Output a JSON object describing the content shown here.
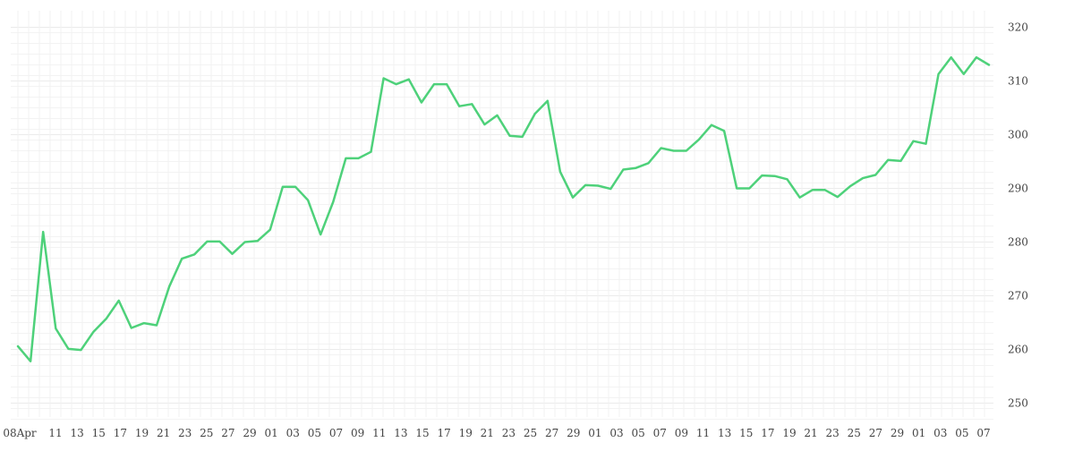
{
  "chart_data": {
    "type": "line",
    "title": "",
    "xlabel": "",
    "ylabel": "",
    "ylim": [
      245,
      322
    ],
    "y_ticks": [
      250,
      260,
      270,
      280,
      290,
      300,
      310,
      320
    ],
    "y_axis_position": "right",
    "grid": true,
    "legend": "none",
    "line_color": "#4ed17a",
    "grid_color": "#ebebeb",
    "x_tick_labels": [
      "08Apr",
      "11",
      "13",
      "15",
      "17",
      "19",
      "21",
      "23",
      "25",
      "27",
      "29",
      "01",
      "03",
      "05",
      "07",
      "09",
      "11",
      "13",
      "15",
      "17",
      "19",
      "21",
      "23",
      "25",
      "27",
      "29",
      "01",
      "03",
      "05",
      "07",
      "09",
      "11",
      "13",
      "15",
      "17",
      "19",
      "21",
      "23",
      "25",
      "27",
      "29",
      "01",
      "03",
      "05",
      "07"
    ],
    "series": [
      {
        "values": [
          260.6,
          257.8,
          281.9,
          263.9,
          260.1,
          259.9,
          263.3,
          265.7,
          269.1,
          264.0,
          264.9,
          264.5,
          271.7,
          276.9,
          277.7,
          280.1,
          280.1,
          277.8,
          280.0,
          280.2,
          282.3,
          290.3,
          290.3,
          287.8,
          281.4,
          287.5,
          295.6,
          295.6,
          296.8,
          310.5,
          309.4,
          310.3,
          306.0,
          309.4,
          309.4,
          305.3,
          305.7,
          301.9,
          303.6,
          299.8,
          299.6,
          303.9,
          306.3,
          293.1,
          288.3,
          290.6,
          290.5,
          289.9,
          293.5,
          293.8,
          294.7,
          297.5,
          297.0,
          297.0,
          299.1,
          301.8,
          300.7,
          290.0,
          290.0,
          292.4,
          292.3,
          291.7,
          288.3,
          289.7,
          289.7,
          288.4,
          290.4,
          291.9,
          292.5,
          295.3,
          295.1,
          298.8,
          298.3,
          311.3,
          314.4,
          311.3,
          314.4,
          313.0
        ]
      }
    ]
  }
}
